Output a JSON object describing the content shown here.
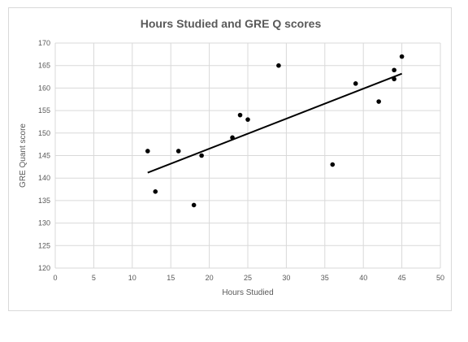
{
  "chart_data": {
    "type": "scatter",
    "title": "Hours Studied and GRE Q scores",
    "xlabel": "Hours Studied",
    "ylabel": "GRE Quant score",
    "xlim": [
      0,
      50
    ],
    "ylim": [
      120,
      170
    ],
    "xticks": [
      0,
      5,
      10,
      15,
      20,
      25,
      30,
      35,
      40,
      45,
      50
    ],
    "yticks": [
      120,
      125,
      130,
      135,
      140,
      145,
      150,
      155,
      160,
      165,
      170
    ],
    "grid": true,
    "legend": "none",
    "points": [
      {
        "x": 12,
        "y": 146
      },
      {
        "x": 13,
        "y": 137
      },
      {
        "x": 16,
        "y": 146
      },
      {
        "x": 18,
        "y": 134
      },
      {
        "x": 19,
        "y": 145
      },
      {
        "x": 23,
        "y": 149
      },
      {
        "x": 24,
        "y": 154
      },
      {
        "x": 25,
        "y": 153
      },
      {
        "x": 29,
        "y": 165
      },
      {
        "x": 36,
        "y": 143
      },
      {
        "x": 39,
        "y": 161
      },
      {
        "x": 42,
        "y": 157
      },
      {
        "x": 44,
        "y": 164
      },
      {
        "x": 44,
        "y": 162
      },
      {
        "x": 45,
        "y": 167
      }
    ],
    "trendline": {
      "type": "linear",
      "x_start": 12,
      "y_start": 141.2,
      "x_end": 45,
      "y_end": 163.2
    },
    "colors": {
      "points": "#000000",
      "trendline": "#000000",
      "grid": "#d9d9d9",
      "text": "#595959"
    }
  }
}
